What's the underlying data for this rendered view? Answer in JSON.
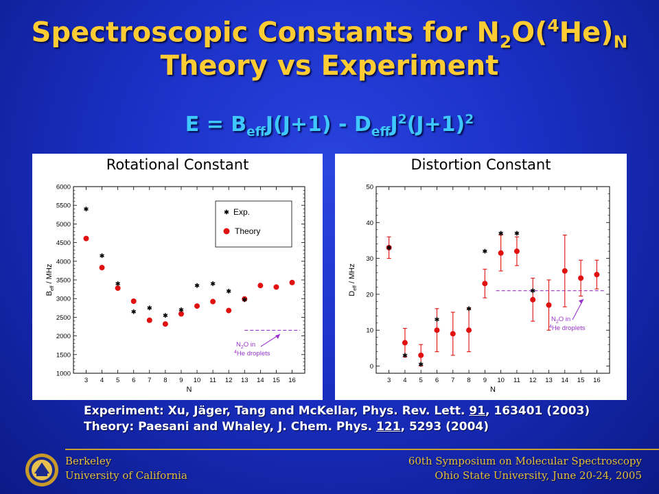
{
  "slide": {
    "title_line1_main": "Spectroscopic Constants for N",
    "title_sub_2": "2",
    "title_paren_open": "O(",
    "title_sup_4": "4",
    "title_he": "He)",
    "title_sub_N": "N",
    "title_line2": "Theory vs Experiment",
    "eq_E": "E = B",
    "eq_eff1": "eff",
    "eq_mid": "J(J+1) - D",
    "eq_eff2": "eff",
    "eq_J": "J",
    "eq_sup2a": "2",
    "eq_paren": "(J+1)",
    "eq_sup2b": "2",
    "ref1_a": "Experiment: Xu, Jäger, Tang and McKellar, Phys. Rev. Lett. ",
    "ref1_vol": "91",
    "ref1_b": ", 163401 (2003)",
    "ref2_a": "Theory: Paesani and Whaley, J. Chem. Phys. ",
    "ref2_vol": "121",
    "ref2_b": ", 5293 (2004)",
    "footer_left1": "Berkeley",
    "footer_left2": "University of California",
    "footer_right1": "60th Symposium on Molecular Spectroscopy",
    "footer_right2": "Ohio State University, June 20-24, 2005"
  },
  "colors": {
    "title": "#ffcc33",
    "equation": "#3ec8ff",
    "theory": "#e01010",
    "experiment": "#000000",
    "droplet_line": "#9933cc"
  },
  "chart_data": [
    {
      "type": "scatter",
      "title": "Rotational Constant",
      "xlabel": "N",
      "ylabel": "B",
      "ylabel_sub": "eff",
      "ylabel_unit": " / MHz",
      "xlim": [
        2.2,
        16.8
      ],
      "ylim": [
        1000,
        6000
      ],
      "xticks": [
        3,
        4,
        5,
        6,
        7,
        8,
        9,
        10,
        11,
        12,
        13,
        14,
        15,
        16
      ],
      "yticks": [
        1000,
        1500,
        2000,
        2500,
        3000,
        3500,
        4000,
        4500,
        5000,
        5500,
        6000
      ],
      "legend": {
        "position": "top-right",
        "exp_label": "Exp.",
        "theory_label": "Theory"
      },
      "series": [
        {
          "name": "Exp.",
          "marker": "asterisk",
          "x": [
            3,
            4,
            5,
            6,
            7,
            8,
            9,
            10,
            11,
            12,
            13
          ],
          "y": [
            5400,
            4150,
            3400,
            2650,
            2750,
            2550,
            2700,
            3350,
            3400,
            3200,
            2970
          ]
        },
        {
          "name": "Theory",
          "marker": "circle",
          "x": [
            3,
            4,
            5,
            6,
            7,
            8,
            9,
            10,
            11,
            12,
            13,
            14,
            15,
            16
          ],
          "y": [
            4610,
            3830,
            3280,
            2930,
            2420,
            2320,
            2590,
            2800,
            2920,
            2680,
            2990,
            3350,
            3310,
            3430
          ]
        }
      ],
      "droplet_line": {
        "x": [
          13,
          16.5
        ],
        "y": 2150
      },
      "annotation": {
        "line1": "N",
        "line1_sub": "2",
        "line1_end": "O in",
        "line2_sup": "4",
        "line2": "He droplets"
      }
    },
    {
      "type": "scatter",
      "title": "Distortion Constant",
      "xlabel": "N",
      "ylabel": "D",
      "ylabel_sub": "eff",
      "ylabel_unit": " / MHz",
      "xlim": [
        2.2,
        16.8
      ],
      "ylim": [
        -2,
        50
      ],
      "xticks": [
        3,
        4,
        5,
        6,
        7,
        8,
        9,
        10,
        11,
        12,
        13,
        14,
        15,
        16
      ],
      "yticks": [
        0,
        10,
        20,
        30,
        40,
        50
      ],
      "series": [
        {
          "name": "Exp.",
          "marker": "asterisk",
          "x": [
            3,
            4,
            5,
            6,
            8,
            9,
            10,
            11,
            12
          ],
          "y": [
            33,
            3,
            0.5,
            13,
            16,
            32,
            37,
            37,
            21
          ]
        },
        {
          "name": "Theory",
          "marker": "circle",
          "x": [
            3,
            4,
            5,
            6,
            7,
            8,
            9,
            10,
            11,
            12,
            13,
            14,
            15,
            16
          ],
          "y": [
            33,
            6.5,
            3,
            10,
            9,
            10,
            23,
            31.5,
            32,
            18.5,
            17,
            26.5,
            24.5,
            25.5
          ],
          "err": [
            3,
            4,
            3,
            6,
            6,
            6,
            4,
            5,
            4,
            6,
            7,
            10,
            5,
            4
          ]
        }
      ],
      "droplet_line": {
        "x": [
          9.7,
          16.5
        ],
        "y": 21
      },
      "annotation": {
        "line1": "N",
        "line1_sub": "2",
        "line1_end": "O in",
        "line2_sup": "4",
        "line2": "He droplets"
      }
    }
  ]
}
